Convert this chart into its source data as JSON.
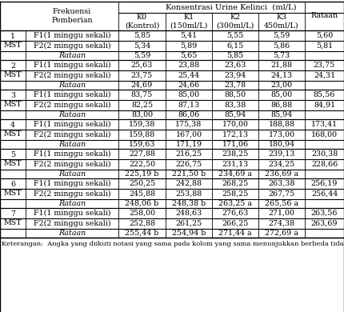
{
  "header_top": "Konsentrasi Urine Kelinci  (ml/L)",
  "col_header_frek": "Frekuensi\nPemberian",
  "col_k_headers": [
    "K0\n(Kontrol)",
    "K1\n(150ml/L)",
    "K2\n(300ml/L)",
    "K3\n450ml/L)"
  ],
  "col_rataan": "Rataan",
  "rows": [
    {
      "mst": "1\nMST",
      "f1_vals": [
        "5,85",
        "5,41",
        "5,55",
        "5,59",
        "5,60"
      ],
      "f2_vals": [
        "5,34",
        "5,89",
        "6,15",
        "5,86",
        "5,81"
      ],
      "rat_vals": [
        "5,59",
        "5,65",
        "5,85",
        "5,73",
        ""
      ]
    },
    {
      "mst": "2\nMST",
      "f1_vals": [
        "25,63",
        "23,88",
        "23,63",
        "21,88",
        "23,75"
      ],
      "f2_vals": [
        "23,75",
        "25,44",
        "23,94",
        "24,13",
        "24,31"
      ],
      "rat_vals": [
        "24,69",
        "24,66",
        "23,78",
        "23,00",
        ""
      ]
    },
    {
      "mst": "3\nMST",
      "f1_vals": [
        "83,75",
        "85,00",
        "88,50",
        "85,00",
        "85,56"
      ],
      "f2_vals": [
        "82,25",
        "87,13",
        "83,38",
        "86,88",
        "84,91"
      ],
      "rat_vals": [
        "83,00",
        "86,06",
        "85,94",
        "85,94",
        ""
      ]
    },
    {
      "mst": "4\nMST",
      "f1_vals": [
        "159,38",
        "175,38",
        "170,00",
        "188,88",
        "173,41"
      ],
      "f2_vals": [
        "159,88",
        "167,00",
        "172,13",
        "173,00",
        "168,00"
      ],
      "rat_vals": [
        "159,63",
        "171,19",
        "171,06",
        "180,94",
        ""
      ]
    },
    {
      "mst": "5\nMST",
      "f1_vals": [
        "227,88",
        "216,25",
        "238,25",
        "239,13",
        "230,38"
      ],
      "f2_vals": [
        "222,50",
        "226,75",
        "231,13",
        "234,25",
        "228,66"
      ],
      "rat_vals": [
        "225,19 b",
        "221,50 b",
        "234,69 a",
        "236,69 a",
        ""
      ]
    },
    {
      "mst": "6\nMST",
      "f1_vals": [
        "250,25",
        "242,88",
        "268,25",
        "263,38",
        "256,19"
      ],
      "f2_vals": [
        "245,88",
        "253,88",
        "258,25",
        "267,75",
        "256,44"
      ],
      "rat_vals": [
        "248,06 b",
        "248,38 b",
        "263,25 a",
        "265,56 a",
        ""
      ]
    },
    {
      "mst": "7\nMST",
      "f1_vals": [
        "258,00",
        "248,63",
        "276,63",
        "271,00",
        "263,56"
      ],
      "f2_vals": [
        "252,88",
        "261,25",
        "266,25",
        "274,38",
        "263,69"
      ],
      "rat_vals": [
        "255,44 b",
        "254,94 b",
        "271,44 a",
        "272,69 a",
        ""
      ]
    }
  ],
  "f1_label": "F1(1 minggu sekali)",
  "f2_label": "F2(2 minggu sekali)",
  "rataan_label": "Rataan",
  "footnote": "Keterangan:  Angka yang diikuti notasi yang sama pada kolom yang sama menunjukkan berbeda tidak",
  "bg_color": "#ffffff",
  "text_color": "#000000",
  "font_size": 6.8
}
